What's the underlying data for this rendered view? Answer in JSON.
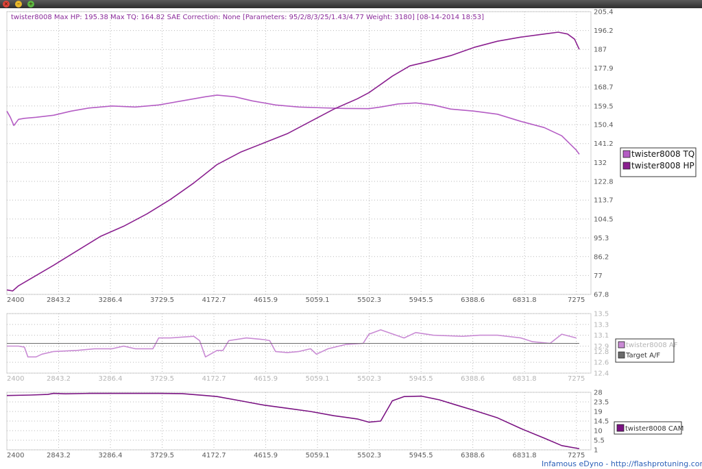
{
  "window": {
    "buttons": [
      {
        "name": "close-icon",
        "glyph": "×",
        "color": "#e0443a"
      },
      {
        "name": "minimize-icon",
        "glyph": "–",
        "color": "#e8b82a"
      },
      {
        "name": "maximize-icon",
        "glyph": "+",
        "color": "#5cb843"
      }
    ]
  },
  "header": "twister8008 Max HP: 195.38 Max TQ: 164.82 SAE Correction: None [Parameters: 95/2/8/3/25/1.43/4.77 Weight: 3180] [08-14-2014 18:53]",
  "footer": "Infamous eDyno - http://flashprotuning.com",
  "colors": {
    "tq": "#b45cc4",
    "hp": "#8a1f8f",
    "af": "#c98ad4",
    "target_af": "#6a6a6a",
    "cam": "#7a1282",
    "grid": "#b8b8b8"
  },
  "chart_data": [
    {
      "type": "line",
      "title": "",
      "x_ticks": [
        "2400",
        "2843.2",
        "3286.4",
        "3729.5",
        "4172.7",
        "4615.9",
        "5059.1",
        "5502.3",
        "5945.5",
        "6388.6",
        "6831.8",
        "7275"
      ],
      "y_ticks": [
        "205.4",
        "196.2",
        "187",
        "177.9",
        "168.7",
        "159.5",
        "150.4",
        "141.2",
        "132",
        "122.8",
        "113.7",
        "104.5",
        "95.3",
        "86.2",
        "77",
        "67.8"
      ],
      "xlim": [
        2400,
        7400
      ],
      "ylim": [
        67.8,
        205.4
      ],
      "grid": true,
      "legend_position": "right",
      "series": [
        {
          "name": "twister8008 TQ",
          "points": [
            [
              2400,
              157
            ],
            [
              2430,
              154
            ],
            [
              2460,
              150
            ],
            [
              2500,
              153
            ],
            [
              2550,
              153.5
            ],
            [
              2650,
              154
            ],
            [
              2800,
              155
            ],
            [
              2950,
              157
            ],
            [
              3100,
              158.5
            ],
            [
              3300,
              159.5
            ],
            [
              3500,
              159
            ],
            [
              3700,
              160
            ],
            [
              3900,
              162
            ],
            [
              4100,
              164
            ],
            [
              4200,
              164.8
            ],
            [
              4350,
              164
            ],
            [
              4500,
              162
            ],
            [
              4700,
              160
            ],
            [
              4900,
              159
            ],
            [
              5100,
              158.6
            ],
            [
              5300,
              158.3
            ],
            [
              5500,
              158.2
            ],
            [
              5600,
              159
            ],
            [
              5750,
              160.5
            ],
            [
              5900,
              161
            ],
            [
              6050,
              160
            ],
            [
              6200,
              158
            ],
            [
              6400,
              157
            ],
            [
              6600,
              155.5
            ],
            [
              6800,
              152
            ],
            [
              7000,
              149
            ],
            [
              7150,
              145
            ],
            [
              7275,
              138
            ],
            [
              7300,
              136
            ]
          ]
        },
        {
          "name": "twister8008 HP",
          "points": [
            [
              2400,
              70
            ],
            [
              2450,
              69.5
            ],
            [
              2500,
              72
            ],
            [
              2650,
              77
            ],
            [
              2800,
              82
            ],
            [
              3000,
              89
            ],
            [
              3200,
              96
            ],
            [
              3400,
              101
            ],
            [
              3600,
              107
            ],
            [
              3800,
              114
            ],
            [
              4000,
              122
            ],
            [
              4200,
              131
            ],
            [
              4400,
              137
            ],
            [
              4600,
              141.5
            ],
            [
              4800,
              146
            ],
            [
              5000,
              152
            ],
            [
              5200,
              158
            ],
            [
              5400,
              163
            ],
            [
              5500,
              166
            ],
            [
              5600,
              170
            ],
            [
              5700,
              174
            ],
            [
              5850,
              179
            ],
            [
              6000,
              181
            ],
            [
              6200,
              184
            ],
            [
              6400,
              188
            ],
            [
              6600,
              191
            ],
            [
              6800,
              193
            ],
            [
              7000,
              194.5
            ],
            [
              7120,
              195.4
            ],
            [
              7200,
              194.5
            ],
            [
              7260,
              192
            ],
            [
              7300,
              187
            ]
          ]
        }
      ]
    },
    {
      "type": "line",
      "title": "",
      "x_ticks": [
        "2400",
        "2843.2",
        "3286.4",
        "3729.5",
        "4172.7",
        "4615.9",
        "5059.1",
        "5502.3",
        "5945.5",
        "6388.6",
        "6831.8",
        "7275"
      ],
      "y_ticks": [
        "13.5",
        "13.3",
        "13.1",
        "12.9",
        "12.8",
        "12.6",
        "12.4"
      ],
      "xlim": [
        2400,
        7400
      ],
      "ylim": [
        12.4,
        13.5
      ],
      "grid": true,
      "legend_position": "right",
      "series": [
        {
          "name": "twister8008 AF",
          "points": [
            [
              2400,
              12.9
            ],
            [
              2500,
              12.9
            ],
            [
              2550,
              12.88
            ],
            [
              2580,
              12.7
            ],
            [
              2650,
              12.7
            ],
            [
              2700,
              12.75
            ],
            [
              2800,
              12.8
            ],
            [
              3000,
              12.82
            ],
            [
              3150,
              12.85
            ],
            [
              3300,
              12.85
            ],
            [
              3400,
              12.9
            ],
            [
              3500,
              12.85
            ],
            [
              3650,
              12.85
            ],
            [
              3700,
              13.05
            ],
            [
              3800,
              13.05
            ],
            [
              4000,
              13.08
            ],
            [
              4050,
              13.0
            ],
            [
              4100,
              12.7
            ],
            [
              4200,
              12.82
            ],
            [
              4250,
              12.82
            ],
            [
              4300,
              13.0
            ],
            [
              4450,
              13.05
            ],
            [
              4600,
              13.02
            ],
            [
              4650,
              13.0
            ],
            [
              4700,
              12.8
            ],
            [
              4800,
              12.78
            ],
            [
              4900,
              12.8
            ],
            [
              5000,
              12.85
            ],
            [
              5050,
              12.75
            ],
            [
              5150,
              12.85
            ],
            [
              5300,
              12.93
            ],
            [
              5450,
              12.95
            ],
            [
              5500,
              13.12
            ],
            [
              5600,
              13.2
            ],
            [
              5800,
              13.05
            ],
            [
              5900,
              13.15
            ],
            [
              6050,
              13.1
            ],
            [
              6300,
              13.08
            ],
            [
              6450,
              13.1
            ],
            [
              6600,
              13.1
            ],
            [
              6800,
              13.05
            ],
            [
              6900,
              12.98
            ],
            [
              7050,
              12.95
            ],
            [
              7150,
              13.12
            ],
            [
              7275,
              13.05
            ]
          ]
        },
        {
          "name": "Target A/F",
          "points": [
            [
              2400,
              12.95
            ],
            [
              7300,
              12.95
            ]
          ]
        }
      ]
    },
    {
      "type": "line",
      "title": "",
      "x_ticks": [
        "2400",
        "2843.2",
        "3286.4",
        "3729.5",
        "4172.7",
        "4615.9",
        "5059.1",
        "5502.3",
        "5945.5",
        "6388.6",
        "6831.8",
        "7275"
      ],
      "y_ticks": [
        "28",
        "23.5",
        "19",
        "14.5",
        "10",
        "5.5",
        "1"
      ],
      "xlim": [
        2400,
        7400
      ],
      "ylim": [
        1,
        28
      ],
      "grid": true,
      "legend_position": "right",
      "series": [
        {
          "name": "twister8008 CAM",
          "points": [
            [
              2400,
              26.5
            ],
            [
              2600,
              26.7
            ],
            [
              2750,
              27
            ],
            [
              2800,
              27.5
            ],
            [
              2900,
              27.3
            ],
            [
              3100,
              27.5
            ],
            [
              3400,
              27.5
            ],
            [
              3700,
              27.5
            ],
            [
              3900,
              27.4
            ],
            [
              4100,
              26.5
            ],
            [
              4200,
              26
            ],
            [
              4400,
              24
            ],
            [
              4600,
              22
            ],
            [
              4800,
              20.5
            ],
            [
              5000,
              19
            ],
            [
              5200,
              17
            ],
            [
              5400,
              15.5
            ],
            [
              5500,
              14
            ],
            [
              5600,
              14.5
            ],
            [
              5700,
              24
            ],
            [
              5800,
              26
            ],
            [
              5950,
              26.2
            ],
            [
              6100,
              24.5
            ],
            [
              6250,
              22
            ],
            [
              6400,
              19.5
            ],
            [
              6600,
              16
            ],
            [
              6800,
              11
            ],
            [
              7000,
              6.5
            ],
            [
              7150,
              3
            ],
            [
              7300,
              1.5
            ]
          ]
        }
      ]
    }
  ]
}
